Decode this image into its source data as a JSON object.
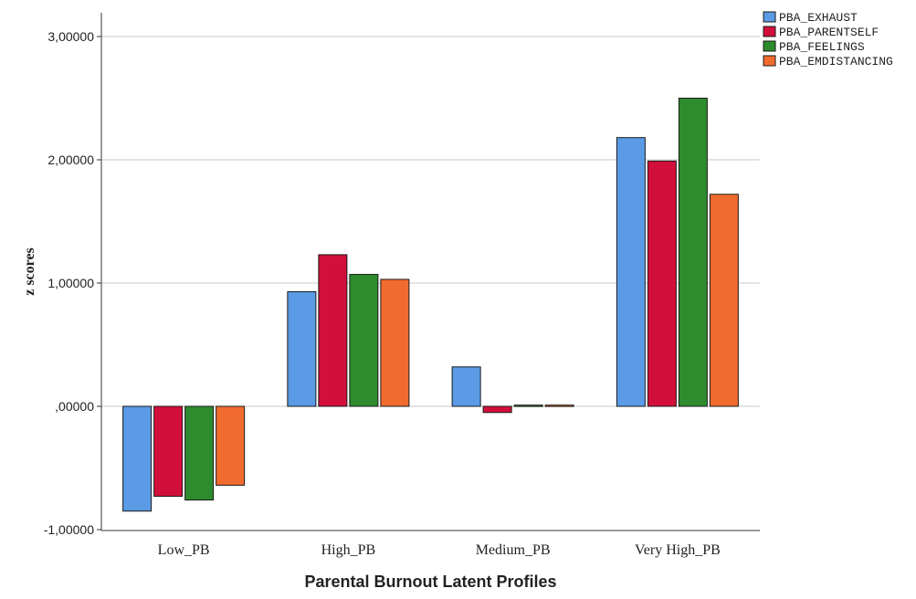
{
  "chart_data": {
    "type": "bar",
    "xlabel": "Parental Burnout Latent Profiles",
    "ylabel": "z scores",
    "ylim": [
      -1,
      3
    ],
    "yticks": [
      -1,
      0,
      1,
      2,
      3
    ],
    "ytick_labels": [
      "-1,00000",
      ",00000",
      "1,00000",
      "2,00000",
      "3,00000"
    ],
    "grid": true,
    "legend_position": "top-right",
    "categories": [
      "Low_PB",
      "High_PB",
      "Medium_PB",
      "Very High_PB"
    ],
    "series": [
      {
        "name": "PBA_EXHAUST",
        "color": "#5b9be6",
        "values": [
          -0.85,
          0.93,
          0.32,
          2.18
        ]
      },
      {
        "name": "PBA_PARENTSELF",
        "color": "#d20f3a",
        "values": [
          -0.73,
          1.23,
          -0.05,
          1.99
        ]
      },
      {
        "name": "PBA_FEELINGS",
        "color": "#2e8b2e",
        "values": [
          -0.76,
          1.07,
          0.01,
          2.5
        ]
      },
      {
        "name": "PBA_EMDISTANCING",
        "color": "#f26b2e",
        "values": [
          -0.64,
          1.03,
          0.01,
          1.72
        ]
      }
    ]
  }
}
